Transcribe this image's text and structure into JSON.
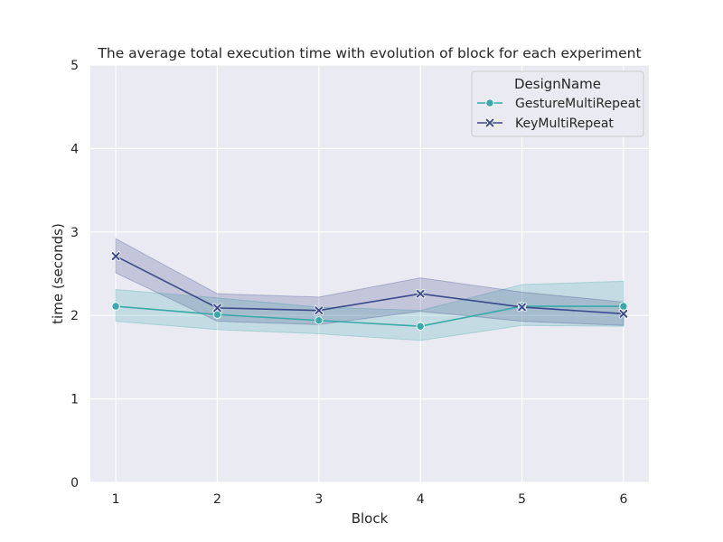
{
  "chart_data": {
    "type": "line",
    "title": "The average total execution time with evolution of block for each experiment",
    "xlabel": "Block",
    "ylabel": "time (seconds)",
    "x": [
      1,
      2,
      3,
      4,
      5,
      6
    ],
    "xlim": [
      0.75,
      6.25
    ],
    "ylim": [
      0,
      5
    ],
    "xticks": [
      1,
      2,
      3,
      4,
      5,
      6
    ],
    "yticks": [
      0,
      1,
      2,
      3,
      4,
      5
    ],
    "grid": true,
    "legend": {
      "title": "DesignName",
      "position": "top-right"
    },
    "series": [
      {
        "name": "GestureMultiRepeat",
        "color": "#3aa9a9",
        "marker": "circle",
        "values": [
          2.11,
          2.01,
          1.94,
          1.87,
          2.11,
          2.11
        ],
        "ci_low": [
          1.93,
          1.83,
          1.78,
          1.7,
          1.88,
          1.87
        ],
        "ci_high": [
          2.31,
          2.21,
          2.1,
          2.06,
          2.37,
          2.41
        ]
      },
      {
        "name": "KeyMultiRepeat",
        "color": "#3a4a8a",
        "marker": "x",
        "values": [
          2.71,
          2.09,
          2.06,
          2.26,
          2.1,
          2.02
        ],
        "ci_low": [
          2.51,
          1.93,
          1.89,
          2.05,
          1.93,
          1.88
        ],
        "ci_high": [
          2.92,
          2.26,
          2.22,
          2.45,
          2.28,
          2.16
        ]
      }
    ]
  }
}
